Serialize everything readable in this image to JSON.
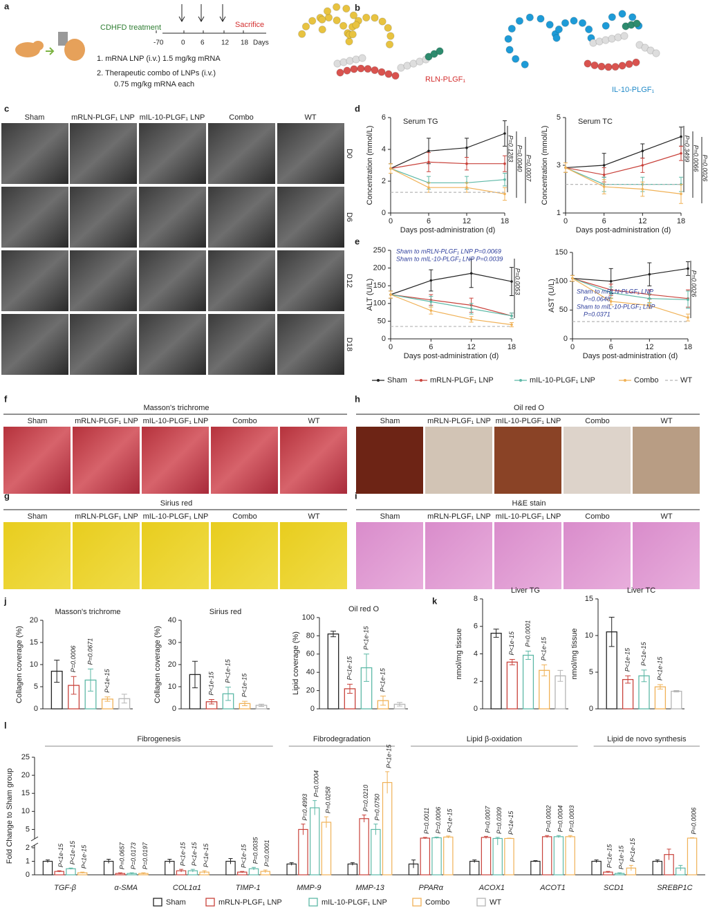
{
  "panel_labels": [
    "a",
    "b",
    "c",
    "d",
    "e",
    "f",
    "g",
    "h",
    "i",
    "j",
    "k",
    "l"
  ],
  "schematic": {
    "treatment": "CDHFD treatment",
    "sacrifice": "Sacrifice",
    "days": [
      -70,
      0,
      6,
      12,
      18
    ],
    "unit": "Days",
    "steps": [
      "1. mRNA LNP (i.v.) 1.5 mg/kg mRNA",
      "2. Therapeutic combo of LNPs (i.v.)",
      "0.75 mg/kg mRNA each"
    ]
  },
  "constructs": [
    "RLN-PLGF₁",
    "IL-10-PLGF₁"
  ],
  "groups": [
    "Sham",
    "mRLN-PLGF₁ LNP",
    "mIL-10-PLGF₁ LNP",
    "Combo",
    "WT"
  ],
  "ultrasound_rows": [
    "D0",
    "D6",
    "D12",
    "D18"
  ],
  "histology": [
    "Masson's trichrome",
    "Sirius red",
    "Oil red O",
    "H&E stain"
  ],
  "chart_data": [
    {
      "type": "line",
      "title": "Serum TG",
      "ylabel": "Concentration (mmol/L)",
      "xlabel": "Days post-administration (d)",
      "x": [
        0,
        6,
        12,
        18
      ],
      "xlim": [
        0,
        18
      ],
      "xticks": [
        0,
        6,
        12,
        18
      ],
      "ylim": [
        0,
        6
      ],
      "yticks": [
        0,
        2,
        4,
        6
      ],
      "p_values": [
        "P=0.1283",
        "P=0.0040",
        "P=0.0007"
      ],
      "series": [
        {
          "name": "Sham",
          "color": "#222222",
          "values": [
            2.8,
            3.9,
            4.1,
            5.0
          ],
          "errors": [
            0.3,
            0.8,
            0.6,
            0.8
          ]
        },
        {
          "name": "mRLN-PLGF₁ LNP",
          "color": "#c8413a",
          "values": [
            2.8,
            3.2,
            3.1,
            3.1
          ],
          "errors": [
            0.3,
            0.6,
            0.4,
            0.5
          ]
        },
        {
          "name": "mIL-10-PLGF₁ LNP",
          "color": "#5cb8a6",
          "values": [
            2.8,
            1.9,
            1.9,
            2.1
          ],
          "errors": [
            0.3,
            0.4,
            0.4,
            0.4
          ]
        },
        {
          "name": "Combo",
          "color": "#f0b156",
          "values": [
            2.8,
            1.6,
            1.6,
            1.2
          ],
          "errors": [
            0.3,
            0.3,
            0.3,
            0.4
          ]
        },
        {
          "name": "WT",
          "color": "#b5b5b5",
          "dash": true,
          "values": [
            1.3,
            1.3,
            1.3,
            1.3
          ]
        }
      ]
    },
    {
      "type": "line",
      "title": "Serum TC",
      "ylabel": "Concentration (mmol/L)",
      "xlabel": "Days post-administration (d)",
      "x": [
        0,
        6,
        12,
        18
      ],
      "xlim": [
        0,
        18
      ],
      "xticks": [
        0,
        6,
        12,
        18
      ],
      "ylim": [
        1,
        5
      ],
      "yticks": [
        1,
        3,
        5
      ],
      "p_values": [
        "P=0.3499",
        "P=0.0066",
        "P=0.0026"
      ],
      "series": [
        {
          "color": "#222222",
          "values": [
            2.9,
            3.0,
            3.6,
            4.2
          ],
          "errors": [
            0.2,
            0.5,
            0.3,
            0.4
          ]
        },
        {
          "color": "#c8413a",
          "values": [
            2.9,
            2.6,
            3.0,
            3.5
          ],
          "errors": [
            0.2,
            0.3,
            0.3,
            0.3
          ]
        },
        {
          "color": "#5cb8a6",
          "values": [
            2.9,
            2.2,
            2.2,
            2.2
          ],
          "errors": [
            0.2,
            0.3,
            0.3,
            0.3
          ]
        },
        {
          "color": "#f0b156",
          "values": [
            2.9,
            2.1,
            2.0,
            1.8
          ],
          "errors": [
            0.2,
            0.3,
            0.3,
            0.4
          ]
        },
        {
          "color": "#b5b5b5",
          "dash": true,
          "values": [
            2.2,
            2.2,
            2.2,
            2.2
          ]
        }
      ]
    },
    {
      "type": "line",
      "ylabel": "ALT (U/L)",
      "xlabel": "Days post-administration (d)",
      "x": [
        0,
        6,
        12,
        18
      ],
      "xlim": [
        0,
        18
      ],
      "xticks": [
        0,
        6,
        12,
        18
      ],
      "ylim": [
        0,
        250
      ],
      "yticks": [
        0,
        50,
        100,
        150,
        200,
        250
      ],
      "notes": [
        "Sham to mRLN-PLGF₁ LNP P=0.0069",
        "Sham to mIL-10-PLGF₁ LNP P=0.0039"
      ],
      "p_values": [
        "P=0.0053"
      ],
      "series": [
        {
          "color": "#222222",
          "values": [
            125,
            165,
            185,
            162
          ],
          "errors": [
            10,
            30,
            40,
            40
          ]
        },
        {
          "color": "#c8413a",
          "values": [
            125,
            110,
            95,
            65
          ],
          "errors": [
            10,
            15,
            20,
            8
          ]
        },
        {
          "color": "#5cb8a6",
          "values": [
            125,
            105,
            85,
            65
          ],
          "errors": [
            10,
            15,
            15,
            8
          ]
        },
        {
          "color": "#f0b156",
          "values": [
            125,
            80,
            55,
            40
          ],
          "errors": [
            10,
            10,
            8,
            6
          ]
        },
        {
          "color": "#b5b5b5",
          "dash": true,
          "values": [
            35,
            35,
            35,
            35
          ]
        }
      ]
    },
    {
      "type": "line",
      "ylabel": "AST (U/L)",
      "xlabel": "Days post-administration (d)",
      "x": [
        0,
        6,
        12,
        18
      ],
      "xlim": [
        0,
        18
      ],
      "xticks": [
        0,
        6,
        12,
        18
      ],
      "ylim": [
        0,
        150
      ],
      "yticks": [
        0,
        50,
        100,
        150
      ],
      "notes": [
        "Sham to mRLN-PLGF₁ LNP",
        "P=0.0648",
        "Sham to mIL-10-PLGF₁ LNP",
        "P=0.0371"
      ],
      "p_values": [
        "P=0.0026"
      ],
      "series": [
        {
          "color": "#222222",
          "values": [
            105,
            100,
            112,
            122
          ],
          "errors": [
            5,
            22,
            20,
            12
          ]
        },
        {
          "color": "#c8413a",
          "values": [
            105,
            85,
            77,
            70
          ],
          "errors": [
            5,
            10,
            8,
            15
          ]
        },
        {
          "color": "#5cb8a6",
          "values": [
            105,
            80,
            70,
            68
          ],
          "errors": [
            5,
            10,
            8,
            15
          ]
        },
        {
          "color": "#f0b156",
          "values": [
            105,
            65,
            58,
            37
          ],
          "errors": [
            5,
            6,
            5,
            6
          ]
        },
        {
          "color": "#b5b5b5",
          "dash": true,
          "values": [
            30,
            30,
            30,
            30
          ]
        }
      ]
    },
    {
      "type": "bar",
      "title": "Masson's trichrome",
      "ylabel": "Collagen coverage (%)",
      "ylim": [
        0,
        20
      ],
      "yticks": [
        0,
        5,
        10,
        15,
        20
      ],
      "colors": [
        "#222222",
        "#c8413a",
        "#5cb8a6",
        "#f0b156",
        "#b5b5b5"
      ],
      "values": [
        8.5,
        5.3,
        6.5,
        2.2,
        2.3
      ],
      "errors": [
        2.5,
        2.0,
        2.5,
        0.5,
        1.0
      ],
      "p_values": [
        null,
        "P=0.0006",
        "P=0.0671",
        "P<1e-15",
        null
      ]
    },
    {
      "type": "bar",
      "title": "Sirius red",
      "ylabel": "Collagen coverage (%)",
      "ylim": [
        0,
        40
      ],
      "yticks": [
        0,
        10,
        20,
        30,
        40
      ],
      "colors": [
        "#222222",
        "#c8413a",
        "#5cb8a6",
        "#f0b156",
        "#b5b5b5"
      ],
      "values": [
        15.5,
        3.2,
        6.8,
        2.4,
        1.6
      ],
      "errors": [
        6,
        1,
        3,
        1,
        0.5
      ],
      "p_values": [
        null,
        "P<1e-15",
        "P<1e-15",
        "P<1e-15",
        null
      ]
    },
    {
      "type": "bar",
      "title": "Oil red O",
      "ylabel": "Lipid coverage (%)",
      "ylim": [
        0,
        100
      ],
      "yticks": [
        0,
        20,
        40,
        60,
        80,
        100
      ],
      "colors": [
        "#222222",
        "#c8413a",
        "#5cb8a6",
        "#f0b156",
        "#b5b5b5"
      ],
      "values": [
        82,
        22,
        45,
        9,
        5
      ],
      "errors": [
        3,
        5,
        15,
        5,
        2
      ],
      "p_values": [
        null,
        "P<1e-15",
        "P<1e-15",
        "P<1e-15",
        null
      ]
    },
    {
      "type": "bar",
      "title": "Liver TG",
      "ylabel": "nmol/mg tissue",
      "ylim": [
        0,
        8
      ],
      "yticks": [
        0,
        2,
        4,
        6,
        8
      ],
      "colors": [
        "#222222",
        "#c8413a",
        "#5cb8a6",
        "#f0b156",
        "#b5b5b5"
      ],
      "values": [
        5.5,
        3.4,
        3.9,
        2.8,
        2.4
      ],
      "errors": [
        0.3,
        0.2,
        0.3,
        0.4,
        0.4
      ],
      "p_values": [
        null,
        "P<1e-15",
        "P=0.0001",
        "P<1e-15",
        null
      ]
    },
    {
      "type": "bar",
      "title": "Liver TC",
      "ylabel": "nmol/mg tissue",
      "ylim": [
        0,
        15
      ],
      "yticks": [
        0,
        5,
        10,
        15
      ],
      "colors": [
        "#222222",
        "#c8413a",
        "#5cb8a6",
        "#f0b156",
        "#b5b5b5"
      ],
      "values": [
        10.5,
        4.0,
        4.5,
        3.0,
        2.4
      ],
      "errors": [
        2.0,
        0.5,
        0.8,
        0.3,
        0.1
      ],
      "p_values": [
        null,
        "P<1e-15",
        "P<1e-15",
        "P<1e-15",
        null
      ]
    },
    {
      "type": "grouped-bar",
      "ylabel": "Fold Change to Sham group",
      "sections": [
        "Fibrogenesis",
        "Fibrodegradation",
        "Lipid β-oxidation",
        "Lipid de novo synthesis"
      ],
      "categories": [
        "TGF-β",
        "α-SMA",
        "COL1α1",
        "TIMP-1",
        "MMP-9",
        "MMP-13",
        "PPARα",
        "ACOX1",
        "ACOT1",
        "SCD1",
        "SREBP1C"
      ],
      "ylim_lower": [
        0,
        2.2
      ],
      "yticks_lower": [
        0,
        1,
        2
      ],
      "ylim_upper": [
        2.4,
        25
      ],
      "yticks_upper": [
        5,
        10,
        15,
        20,
        25
      ],
      "series": [
        {
          "name": "Sham",
          "color": "#222222",
          "values": [
            1.0,
            1.0,
            1.0,
            1.0,
            0.8,
            0.8,
            0.8,
            1.0,
            1.0,
            1.0,
            1.0
          ],
          "errors": [
            0.1,
            0.15,
            0.15,
            0.2,
            0.1,
            0.1,
            0.3,
            0.1,
            0.05,
            0.1,
            0.1
          ]
        },
        {
          "name": "mRLN-PLGF₁ LNP",
          "color": "#c8413a",
          "values": [
            0.25,
            0.1,
            0.3,
            0.2,
            5,
            8,
            2.6,
            2.8,
            3.0,
            0.2,
            1.5
          ],
          "errors": [
            0.05,
            0.05,
            0.1,
            0.05,
            1.5,
            1.0,
            0.2,
            0.3,
            0.3,
            0.05,
            0.4
          ],
          "p_values": [
            "P<1e-15",
            "P=0.0657",
            "P<1e-15",
            "P<1e-15",
            "P=0.4993",
            "P=0.0210",
            "P=0.0011",
            "P=0.0007",
            "P=0.0002",
            "P<1e-15",
            null
          ]
        },
        {
          "name": "mIL-10-PLGF₁ LNP",
          "color": "#5cb8a6",
          "values": [
            0.45,
            0.1,
            0.3,
            0.45,
            11,
            5,
            2.7,
            2.5,
            3.0,
            0.1,
            0.5
          ],
          "errors": [
            0.05,
            0.05,
            0.1,
            0.1,
            2.0,
            1.5,
            0.2,
            0.3,
            0.3,
            0.05,
            0.2
          ],
          "p_values": [
            "P<1e-15",
            "P=0.0173",
            "P<1e-15",
            "P=0.0035",
            "P=0.0004",
            "P=0.0750",
            "P=0.0006",
            "P=0.0309",
            "P=0.0004",
            "P<1e-15",
            null
          ]
        },
        {
          "name": "Combo",
          "color": "#f0b156",
          "values": [
            0.15,
            0.1,
            0.2,
            0.25,
            7,
            18,
            2.9,
            2.5,
            3.0,
            0.5,
            2.6
          ],
          "errors": [
            0.05,
            0.05,
            0.1,
            0.1,
            1.5,
            3.0,
            0.3,
            0.1,
            0.3,
            0.2,
            0.1
          ],
          "p_values": [
            "P<1e-15",
            "P=0.0197",
            "P<1e-15",
            "P=0.0001",
            "P=0.0258",
            "P<1e-15",
            "P<1e-15",
            "P<1e-15",
            "P=0.0003",
            "P<1e-15",
            "P=0.0006"
          ]
        },
        {
          "name": "WT",
          "color": "#b5b5b5"
        }
      ]
    }
  ]
}
